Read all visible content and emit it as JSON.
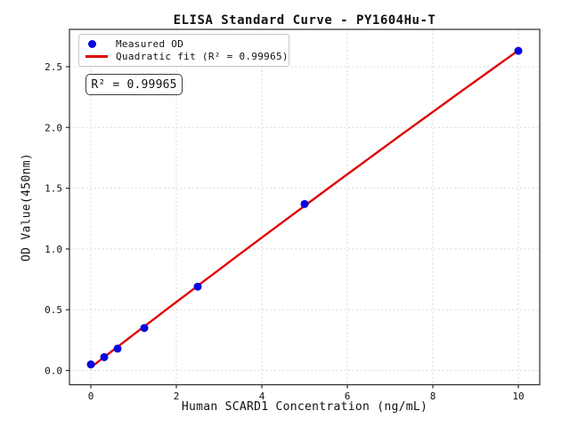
{
  "chart_data": {
    "type": "scatter",
    "title": "ELISA Standard Curve - PY1604Hu-T",
    "xlabel": "Human SCARD1 Concentration (ng/mL)",
    "ylabel": "OD Value(450nm)",
    "x": [
      0,
      0.313,
      0.625,
      1.25,
      2.5,
      5,
      10
    ],
    "series": [
      {
        "name": "Measured OD",
        "type": "scatter",
        "color": "#0707e0",
        "values": [
          0.05,
          0.11,
          0.18,
          0.35,
          0.69,
          1.37,
          2.63
        ]
      },
      {
        "name": "Quadratic fit (R² = 0.99965)",
        "type": "line",
        "color": "#e00505",
        "fit_coefficients": {
          "a": -0.00102,
          "b": 0.27092,
          "c": 0.026
        },
        "x_range": [
          0,
          10
        ]
      }
    ],
    "annotation": "R² = 0.99965",
    "r_squared": 0.99965,
    "x_ticks": [
      0,
      2,
      4,
      6,
      8,
      10
    ],
    "x_tick_labels": [
      "0",
      "2",
      "4",
      "6",
      "8",
      "10"
    ],
    "y_ticks": [
      0.0,
      0.5,
      1.0,
      1.5,
      2.0,
      2.5
    ],
    "y_tick_labels": [
      "0.0",
      "0.5",
      "1.0",
      "1.5",
      "2.0",
      "2.5"
    ],
    "xlim": [
      -0.5,
      10.5
    ],
    "ylim": [
      -0.117,
      2.807
    ],
    "grid": true,
    "legend_position": "upper left",
    "colors": {
      "marker": "#0707e0",
      "line": "#e00505",
      "grid": "#d8d8d8",
      "spine": "#2a2a2a",
      "text": "#111111",
      "background": "#ffffff"
    }
  }
}
